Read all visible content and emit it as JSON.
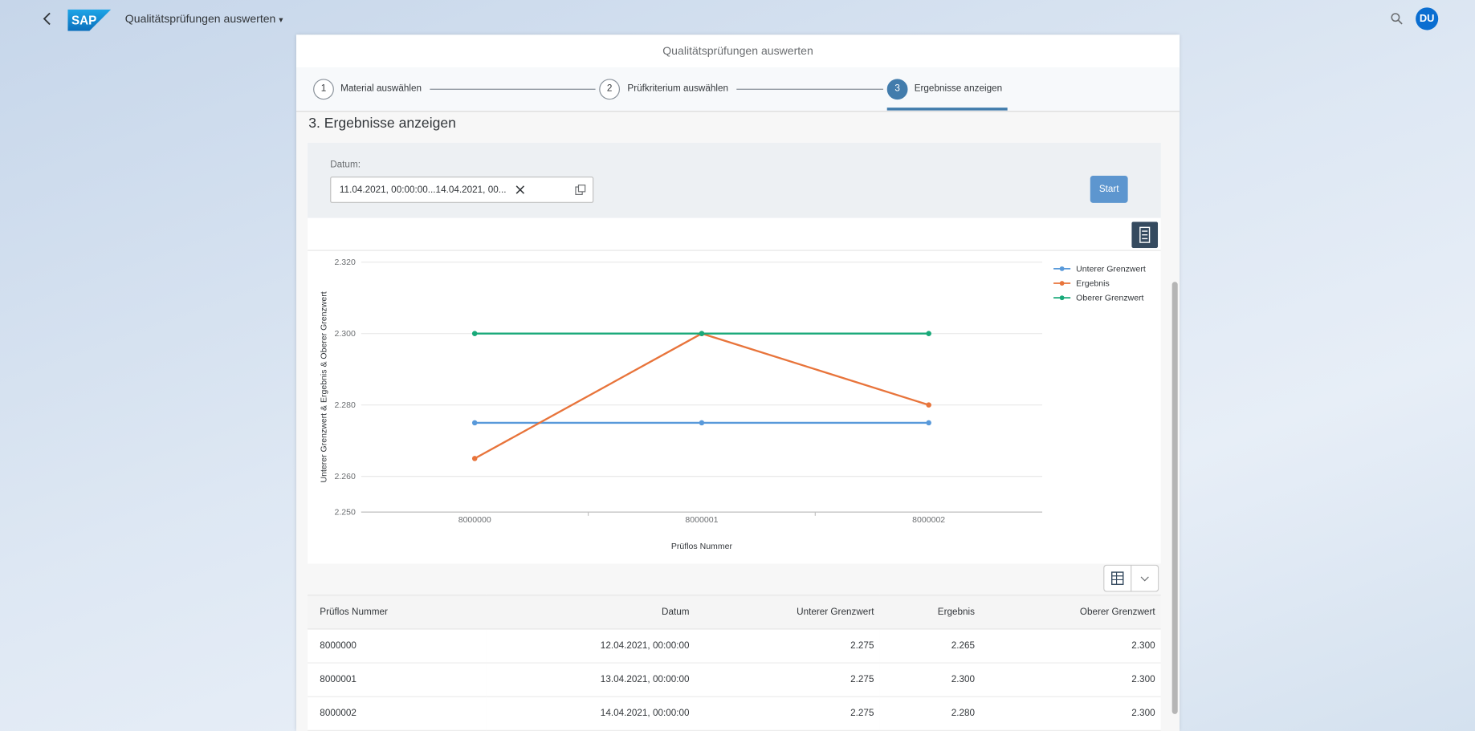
{
  "shell": {
    "logo": "SAP",
    "title": "Qualitätsprüfungen auswerten",
    "avatar": "DU"
  },
  "panel": {
    "title": "Qualitätsprüfungen auswerten"
  },
  "wizard": {
    "steps": [
      {
        "number": "1",
        "label": "Material auswählen"
      },
      {
        "number": "2",
        "label": "Prüfkriterium auswählen"
      },
      {
        "number": "3",
        "label": "Ergebnisse anzeigen"
      }
    ]
  },
  "section_title": "3. Ergebnisse anzeigen",
  "filter": {
    "label": "Datum:",
    "value": "11.04.2021, 00:00:00...14.04.2021, 00...",
    "button": "Start"
  },
  "chart_data": {
    "type": "line",
    "y_label": "Unterer Grenzwert & Ergebnis & Oberer Grenzwert",
    "x_label": "Prüflos Nummer",
    "categories": [
      "8000000",
      "8000001",
      "8000002"
    ],
    "series": [
      {
        "name": "Unterer Grenzwert",
        "color": "#5899da",
        "values": [
          2.275,
          2.275,
          2.275
        ]
      },
      {
        "name": "Ergebnis",
        "color": "#e8743b",
        "values": [
          2.265,
          2.3,
          2.28
        ]
      },
      {
        "name": "Oberer Grenzwert",
        "color": "#19a979",
        "values": [
          2.3,
          2.3,
          2.3
        ]
      }
    ],
    "ylim": [
      2.25,
      2.32
    ],
    "yticks": [
      {
        "value": 2.25,
        "label": "2.250"
      },
      {
        "value": 2.26,
        "label": "2.260"
      },
      {
        "value": 2.28,
        "label": "2.280"
      },
      {
        "value": 2.3,
        "label": "2.300"
      },
      {
        "value": 2.32,
        "label": "2.320"
      }
    ],
    "grid": true,
    "legend": "right"
  },
  "table": {
    "columns": [
      "Prüflos Nummer",
      "Datum",
      "Unterer Grenzwert",
      "Ergebnis",
      "Oberer Grenzwert"
    ],
    "rows": [
      [
        "8000000",
        "12.04.2021, 00:00:00",
        "2.275",
        "2.265",
        "2.300"
      ],
      [
        "8000001",
        "13.04.2021, 00:00:00",
        "2.275",
        "2.300",
        "2.300"
      ],
      [
        "8000002",
        "14.04.2021, 00:00:00",
        "2.275",
        "2.280",
        "2.300"
      ]
    ]
  }
}
